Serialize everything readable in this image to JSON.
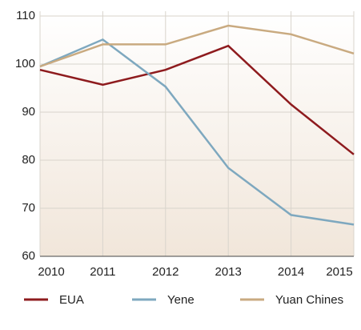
{
  "chart_data": {
    "type": "line",
    "x": [
      2010,
      2011,
      2012,
      2013,
      2014,
      2015
    ],
    "series": [
      {
        "name": "EUA",
        "color": "#8e1b1e",
        "values": [
          98.8,
          95.7,
          98.8,
          103.8,
          91.6,
          81.2
        ]
      },
      {
        "name": "Yene",
        "color": "#7ea8bf",
        "values": [
          99.5,
          105.1,
          95.3,
          78.4,
          68.6,
          66.6
        ]
      },
      {
        "name": "Yuan Chines",
        "color": "#c9aa80",
        "values": [
          99.5,
          104.1,
          104.1,
          108,
          106.2,
          102.2
        ]
      }
    ],
    "xlim": [
      2010,
      2015
    ],
    "xticks": [
      2010,
      2011,
      2012,
      2013,
      2014,
      2015
    ],
    "ylim": [
      60,
      110
    ],
    "yticks": [
      60,
      70,
      80,
      90,
      100,
      110
    ],
    "grid": true,
    "legend": "bottom"
  }
}
